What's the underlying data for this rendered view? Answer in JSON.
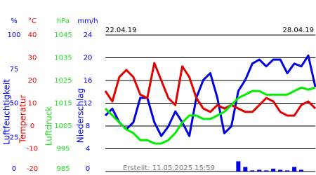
{
  "chart_data": {
    "type": "line",
    "date_start": "22.04.19",
    "date_end": "28.04.19",
    "footer": "Erstellt: 11.05.2025 15:59",
    "grid": true,
    "axes": [
      {
        "unit": "%",
        "title": "Luftfeuchtigkeit",
        "color": "#0000ff",
        "ylim": [
          0,
          100
        ],
        "yticks": [
          0,
          25,
          50,
          75,
          100
        ]
      },
      {
        "unit": "°C",
        "title": "Temperatur",
        "color": "#ff0000",
        "ylim": [
          -20,
          40
        ],
        "yticks": [
          -20,
          -10,
          0,
          10,
          20,
          30,
          40
        ]
      },
      {
        "unit": "hPa",
        "title": "Luftdruck",
        "color": "#22dd22",
        "ylim": [
          985,
          1045
        ],
        "yticks": [
          985,
          995,
          1005,
          1015,
          1025,
          1035,
          1045
        ]
      },
      {
        "unit": "mm/h",
        "title": "Niederschlag",
        "color": "#0000ff",
        "ylim": [
          0,
          24
        ],
        "yticks": [
          0,
          4,
          8,
          12,
          16,
          20,
          24
        ]
      }
    ],
    "series": [
      {
        "axis": 0,
        "type": "line",
        "color": "#0000e0",
        "values": [
          41,
          46,
          36,
          31,
          36,
          54,
          54,
          36,
          26,
          33,
          44,
          36,
          26,
          54,
          67,
          72,
          54,
          28,
          33,
          59,
          67,
          79,
          82,
          77,
          82,
          82,
          72,
          79,
          77,
          85,
          62
        ]
      },
      {
        "axis": 1,
        "type": "line",
        "color": "#e00000",
        "values": [
          15.4,
          10.8,
          21.5,
          24.6,
          21.5,
          13.8,
          12.3,
          27.7,
          20,
          12.3,
          9.2,
          26.2,
          21.5,
          12.3,
          7.7,
          6.2,
          9.2,
          7.7,
          9.2,
          7.7,
          6.2,
          6.2,
          9.2,
          12.3,
          10.8,
          6.2,
          4.6,
          4.6,
          9.2,
          10.8,
          7.7
        ]
      },
      {
        "axis": 2,
        "type": "line",
        "color": "#00ee00",
        "values": [
          1012.7,
          1009.6,
          1006.5,
          1003.5,
          1001.9,
          998.8,
          998.8,
          997.3,
          997.3,
          998.8,
          1001.9,
          1006.5,
          1009.6,
          1009.6,
          1008.1,
          1008.1,
          1009.6,
          1011.2,
          1014.2,
          1017.3,
          1018.8,
          1020.4,
          1020.4,
          1018.8,
          1018.8,
          1018.8,
          1018.8,
          1020.4,
          1021.9,
          1021,
          1021.9
        ]
      },
      {
        "axis": 3,
        "type": "bar",
        "color": "#0000e0",
        "values": [
          0,
          0,
          0,
          0,
          0,
          0,
          0,
          0,
          0,
          0,
          0,
          0,
          0,
          0,
          0,
          0,
          0,
          0,
          0,
          1.8,
          0.8,
          0.2,
          0.3,
          0.2,
          0.5,
          0.3,
          0.2,
          0.8,
          0.3,
          0,
          0
        ]
      }
    ]
  }
}
